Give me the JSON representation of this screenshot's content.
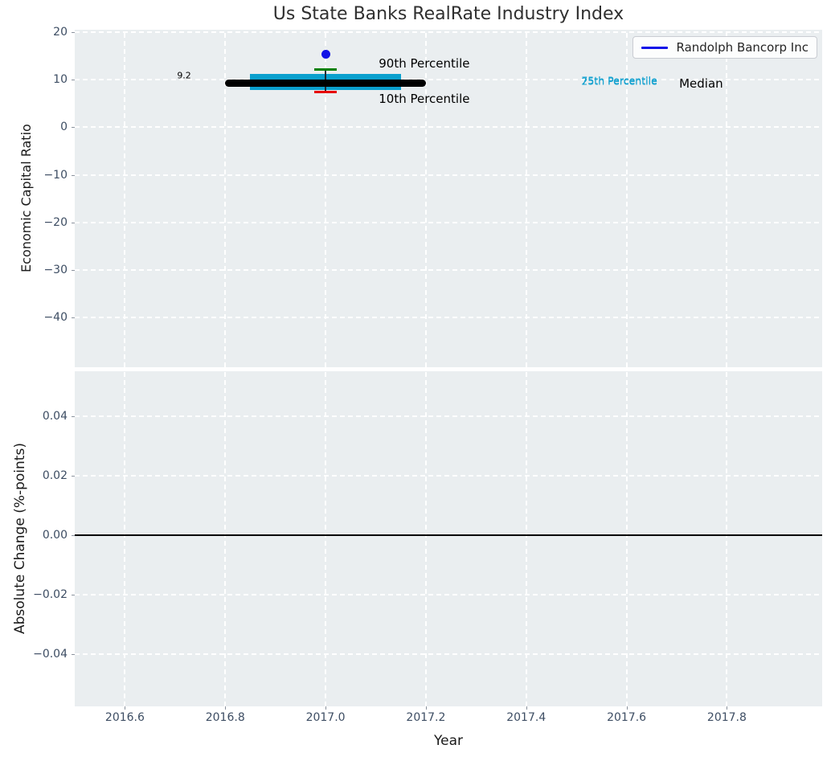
{
  "title": "Us State Banks RealRate Industry Index",
  "legend": {
    "label": "Randolph Bancorp Inc",
    "line_color": "#0e0ee8"
  },
  "colors": {
    "axes_bg": "#eaeef0",
    "grid": "#ffffff",
    "tick_label": "#3d4d63",
    "iqr_bar": "#0aa0ce",
    "median_line": "#000000",
    "p90_cap": "#008000",
    "p10_cap": "#e60000",
    "whisker_line": "#1c2b36",
    "company_dot": "#1212e6",
    "zero_line": "#000000"
  },
  "chart_data": [
    {
      "type": "box-errorbar",
      "title": "Us State Banks RealRate Industry Index",
      "ylabel": "Economic Capital Ratio",
      "xlim": [
        2016.5,
        2017.99
      ],
      "ylim": [
        -50.4,
        20.5
      ],
      "yticks": [
        20,
        10,
        0,
        -10,
        -20,
        -30,
        -40
      ],
      "ytick_labels": [
        "20",
        "10",
        "0",
        "−10",
        "−20",
        "−30",
        "−40"
      ],
      "grid": "white-dashed",
      "legend_position": "upper-right",
      "series": {
        "median": {
          "value": 9.2,
          "x_start": 2016.8,
          "x_end": 2017.2,
          "label": "9.2"
        },
        "iqr": {
          "p25": 7.8,
          "p75": 11.2,
          "x_start": 2016.85,
          "x_end": 2017.15
        },
        "whiskers": {
          "p10": 7.4,
          "p90": 12.2,
          "x": 2017.0,
          "cap_halfwidth": 0.022
        },
        "company": {
          "name": "Randolph Bancorp Inc",
          "x": 2017.0,
          "y": 15.3
        }
      },
      "annotations": [
        {
          "text": "9.2",
          "x": 2016.718,
          "y": 10.8,
          "color": "#000000",
          "size": 11,
          "ha": "center"
        },
        {
          "text": "90th Percentile",
          "x": 2017.106,
          "y": 13.4,
          "color": "#000000",
          "size": 15,
          "ha": "left"
        },
        {
          "text": "10th Percentile",
          "x": 2017.106,
          "y": 5.9,
          "color": "#000000",
          "size": 15,
          "ha": "left"
        },
        {
          "text": "75th Percentile",
          "x": 2017.51,
          "y": 9.9,
          "color": "#14a1cf",
          "size": 12.5,
          "ha": "left"
        },
        {
          "text": "25th Percentile",
          "x": 2017.51,
          "y": 9.62,
          "color": "#14a1cf",
          "size": 12.5,
          "ha": "left"
        },
        {
          "text": "Median",
          "x": 2017.705,
          "y": 9.2,
          "color": "#000000",
          "size": 15,
          "ha": "left"
        }
      ]
    },
    {
      "type": "line",
      "ylabel": "Absolute Change (%-points)",
      "xlabel": "Year",
      "xlim": [
        2016.5,
        2017.99
      ],
      "ylim": [
        -0.0576,
        0.0551
      ],
      "yticks": [
        0.04,
        0.02,
        0.0,
        -0.02,
        -0.04
      ],
      "ytick_labels": [
        "0.04",
        "0.02",
        "0.00",
        "−0.02",
        "−0.04"
      ],
      "xticks": [
        2016.6,
        2016.8,
        2017.0,
        2017.2,
        2017.4,
        2017.6,
        2017.8
      ],
      "xtick_labels": [
        "2016.6",
        "2016.8",
        "2017.0",
        "2017.2",
        "2017.4",
        "2017.6",
        "2017.8"
      ],
      "zero_line": 0.0,
      "grid": "white-dashed"
    }
  ]
}
